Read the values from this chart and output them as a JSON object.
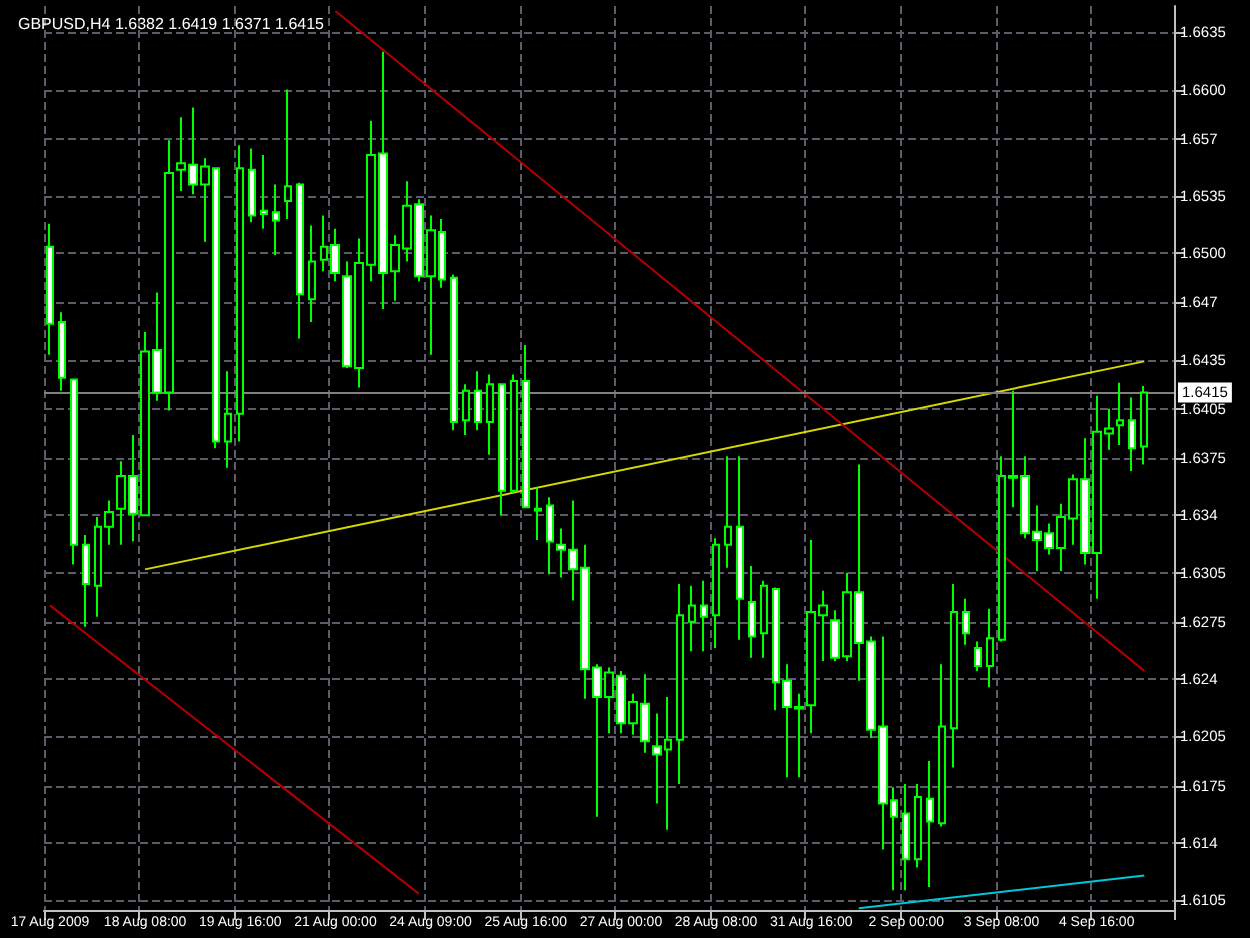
{
  "chart_data": {
    "type": "candlestick",
    "title": "GBPUSD,H4 1.6382 1.6419 1.6371 1.6415",
    "color": "#00ff00",
    "grid": true,
    "categories": [
      "17 Aug 2009",
      null,
      null,
      null,
      null,
      null,
      null,
      null,
      "18 Aug 08:00",
      null,
      null,
      null,
      null,
      null,
      null,
      null,
      "19 Aug 16:00",
      null,
      null,
      null,
      null,
      null,
      null,
      null,
      "21 Aug 00:00",
      null,
      null,
      null,
      null,
      null,
      null,
      null,
      "24 Aug 09:00",
      null,
      null,
      null,
      null,
      null,
      null,
      null,
      "25 Aug 16:00",
      null,
      null,
      null,
      null,
      null,
      null,
      null,
      "27 Aug 00:00",
      null,
      null,
      null,
      null,
      null,
      null,
      null,
      "28 Aug 08:00",
      null,
      null,
      null,
      null,
      null,
      null,
      null,
      "31 Aug 16:00",
      null,
      null,
      null,
      null,
      null,
      null,
      null,
      "2 Sep 00:00",
      null,
      null,
      null,
      null,
      null,
      null,
      null,
      "3 Sep 08:00",
      null,
      null,
      null,
      null,
      null,
      null,
      null,
      "4 Sep 16:00",
      null,
      null,
      null,
      null
    ],
    "ohlc": [
      [
        1.6504,
        1.6518,
        1.6438,
        1.6457
      ],
      [
        1.6458,
        1.6464,
        1.6416,
        1.6424
      ],
      [
        1.6423,
        1.6423,
        1.631,
        1.6322
      ],
      [
        1.6322,
        1.6328,
        1.6272,
        1.6298
      ],
      [
        1.6297,
        1.6339,
        1.6278,
        1.6333
      ],
      [
        1.6333,
        1.6349,
        1.6322,
        1.6342
      ],
      [
        1.6344,
        1.6373,
        1.6322,
        1.6364
      ],
      [
        1.6364,
        1.6389,
        1.6324,
        1.6341
      ],
      [
        1.634,
        1.6452,
        1.634,
        1.644
      ],
      [
        1.6441,
        1.6476,
        1.641,
        1.6415
      ],
      [
        1.6415,
        1.6569,
        1.6404,
        1.6549
      ],
      [
        1.6551,
        1.6583,
        1.6538,
        1.6555
      ],
      [
        1.6554,
        1.6589,
        1.6536,
        1.6542
      ],
      [
        1.6542,
        1.6558,
        1.6507,
        1.6553
      ],
      [
        1.6552,
        1.6552,
        1.6381,
        1.6385
      ],
      [
        1.6385,
        1.6428,
        1.6369,
        1.6402
      ],
      [
        1.6402,
        1.6566,
        1.6385,
        1.6552
      ],
      [
        1.6551,
        1.6564,
        1.6519,
        1.6523
      ],
      [
        1.6526,
        1.656,
        1.6515,
        1.6524
      ],
      [
        1.6525,
        1.6542,
        1.6499,
        1.652
      ],
      [
        1.6532,
        1.66,
        1.6521,
        1.6541
      ],
      [
        1.6542,
        1.6543,
        1.6448,
        1.6475
      ],
      [
        1.6472,
        1.6517,
        1.6458,
        1.6495
      ],
      [
        1.6496,
        1.6523,
        1.6489,
        1.6504
      ],
      [
        1.6505,
        1.6515,
        1.6483,
        1.6488
      ],
      [
        1.6486,
        1.6495,
        1.643,
        1.6431
      ],
      [
        1.643,
        1.6509,
        1.6418,
        1.6494
      ],
      [
        1.6493,
        1.6581,
        1.6483,
        1.656
      ],
      [
        1.6561,
        1.6623,
        1.6466,
        1.6488
      ],
      [
        1.6489,
        1.6511,
        1.6471,
        1.6505
      ],
      [
        1.6503,
        1.6544,
        1.6495,
        1.6529
      ],
      [
        1.653,
        1.6533,
        1.6483,
        1.6486
      ],
      [
        1.6486,
        1.6523,
        1.6438,
        1.6514
      ],
      [
        1.6513,
        1.6521,
        1.6479,
        1.6484
      ],
      [
        1.6485,
        1.6487,
        1.6392,
        1.6397
      ],
      [
        1.6398,
        1.642,
        1.6389,
        1.6416
      ],
      [
        1.6416,
        1.6428,
        1.6392,
        1.6397
      ],
      [
        1.6397,
        1.6426,
        1.6377,
        1.642
      ],
      [
        1.642,
        1.642,
        1.634,
        1.6355
      ],
      [
        1.6355,
        1.6426,
        1.6353,
        1.6422
      ],
      [
        1.6422,
        1.6444,
        1.6345,
        1.6345
      ],
      [
        1.6344,
        1.6357,
        1.6325,
        1.6343
      ],
      [
        1.6346,
        1.6351,
        1.6304,
        1.6324
      ],
      [
        1.6322,
        1.6332,
        1.6302,
        1.6319
      ],
      [
        1.6319,
        1.6349,
        1.6288,
        1.6307
      ],
      [
        1.6308,
        1.6322,
        1.6228,
        1.6246
      ],
      [
        1.6247,
        1.6249,
        1.6156,
        1.6229
      ],
      [
        1.6229,
        1.6247,
        1.6207,
        1.6244
      ],
      [
        1.6242,
        1.6245,
        1.6207,
        1.6213
      ],
      [
        1.6213,
        1.6231,
        1.6206,
        1.6226
      ],
      [
        1.6225,
        1.6243,
        1.6195,
        1.6202
      ],
      [
        1.6199,
        1.6219,
        1.6164,
        1.6194
      ],
      [
        1.6197,
        1.6229,
        1.6148,
        1.6203
      ],
      [
        1.6203,
        1.6298,
        1.6176,
        1.6279
      ],
      [
        1.6275,
        1.6297,
        1.6257,
        1.6285
      ],
      [
        1.6285,
        1.63,
        1.6257,
        1.6278
      ],
      [
        1.6279,
        1.6326,
        1.6259,
        1.6322
      ],
      [
        1.6322,
        1.6376,
        1.6308,
        1.6333
      ],
      [
        1.6333,
        1.6376,
        1.6264,
        1.6289
      ],
      [
        1.6287,
        1.6309,
        1.6253,
        1.6266
      ],
      [
        1.6268,
        1.63,
        1.6253,
        1.6297
      ],
      [
        1.6295,
        1.6296,
        1.6221,
        1.6238
      ],
      [
        1.6239,
        1.6249,
        1.618,
        1.6223
      ],
      [
        1.6223,
        1.6231,
        1.618,
        1.6222
      ],
      [
        1.6224,
        1.6325,
        1.6207,
        1.6281
      ],
      [
        1.6279,
        1.6294,
        1.6251,
        1.6285
      ],
      [
        1.6276,
        1.6282,
        1.6251,
        1.6253
      ],
      [
        1.6254,
        1.6305,
        1.6251,
        1.6293
      ],
      [
        1.6293,
        1.6371,
        1.6239,
        1.6262
      ],
      [
        1.6263,
        1.6266,
        1.6204,
        1.6209
      ],
      [
        1.6211,
        1.6266,
        1.6136,
        1.6164
      ],
      [
        1.6166,
        1.6174,
        1.6111,
        1.6156
      ],
      [
        1.6158,
        1.6176,
        1.6111,
        1.613
      ],
      [
        1.613,
        1.6176,
        1.6125,
        1.6168
      ],
      [
        1.6167,
        1.619,
        1.6113,
        1.6153
      ],
      [
        1.6152,
        1.6249,
        1.615,
        1.6211
      ],
      [
        1.621,
        1.6298,
        1.6186,
        1.6281
      ],
      [
        1.6281,
        1.6289,
        1.6261,
        1.6268
      ],
      [
        1.6259,
        1.6263,
        1.6245,
        1.6248
      ],
      [
        1.6248,
        1.6283,
        1.6235,
        1.6265
      ],
      [
        1.6264,
        1.6376,
        1.6263,
        1.6364
      ],
      [
        1.6364,
        1.6416,
        1.6345,
        1.6363
      ],
      [
        1.6364,
        1.6376,
        1.6326,
        1.6329
      ],
      [
        1.633,
        1.6346,
        1.6306,
        1.6325
      ],
      [
        1.6329,
        1.6335,
        1.6316,
        1.632
      ],
      [
        1.632,
        1.6347,
        1.6306,
        1.6339
      ],
      [
        1.6338,
        1.6365,
        1.6322,
        1.6362
      ],
      [
        1.6362,
        1.6387,
        1.631,
        1.6317
      ],
      [
        1.6317,
        1.6413,
        1.6289,
        1.6391
      ],
      [
        1.639,
        1.6405,
        1.638,
        1.6393
      ],
      [
        1.6395,
        1.6421,
        1.6383,
        1.6398
      ],
      [
        1.6398,
        1.6412,
        1.6367,
        1.6381
      ],
      [
        1.6382,
        1.6419,
        1.6371,
        1.6415
      ]
    ],
    "series": [
      {
        "type": "line",
        "color": "#d8d800",
        "values": [
          null,
          null,
          null,
          null,
          null,
          null,
          null,
          null,
          1.6307,
          null,
          null,
          null,
          null,
          null,
          null,
          null,
          null,
          null,
          null,
          null,
          null,
          null,
          null,
          null,
          null,
          null,
          null,
          null,
          null,
          null,
          null,
          null,
          null,
          null,
          null,
          null,
          null,
          null,
          null,
          null,
          null,
          null,
          null,
          null,
          null,
          null,
          null,
          null,
          null,
          null,
          null,
          null,
          null,
          null,
          null,
          null,
          null,
          null,
          null,
          null,
          null,
          null,
          null,
          null,
          null,
          null,
          null,
          null,
          null,
          null,
          null,
          null,
          null,
          null,
          null,
          null,
          null,
          null,
          null,
          null,
          null,
          null,
          null,
          null,
          null,
          null,
          null,
          null,
          null,
          null,
          null,
          null,
          1.6434
        ]
      },
      {
        "type": "line",
        "color": "#b00000",
        "values": [
          null,
          null,
          null,
          null,
          null,
          null,
          null,
          null,
          null,
          null,
          null,
          null,
          null,
          null,
          null,
          null,
          null,
          null,
          null,
          null,
          null,
          null,
          null,
          null,
          1.6648,
          null,
          null,
          null,
          null,
          null,
          null,
          null,
          null,
          null,
          null,
          null,
          null,
          null,
          null,
          null,
          null,
          null,
          null,
          null,
          null,
          null,
          null,
          null,
          null,
          null,
          null,
          null,
          null,
          null,
          null,
          null,
          null,
          null,
          null,
          null,
          null,
          null,
          null,
          null,
          null,
          null,
          null,
          null,
          null,
          null,
          null,
          null,
          null,
          null,
          null,
          null,
          null,
          null,
          null,
          null,
          null,
          null,
          null,
          null,
          null,
          null,
          null,
          null,
          null,
          null,
          null,
          null,
          1.6245
        ]
      },
      {
        "type": "line",
        "color": "#b00000",
        "values": [
          1.6285,
          null,
          null,
          null,
          null,
          null,
          null,
          null,
          null,
          null,
          null,
          null,
          null,
          null,
          null,
          null,
          null,
          null,
          null,
          null,
          null,
          null,
          null,
          null,
          null,
          null,
          null,
          null,
          null,
          null,
          null,
          1.6109,
          null,
          null,
          null,
          null,
          null,
          null,
          null,
          null,
          null,
          null,
          null,
          null,
          null,
          null,
          null,
          null,
          null,
          null,
          null,
          null,
          null,
          null,
          null,
          null,
          null,
          null,
          null,
          null,
          null,
          null,
          null,
          null,
          null,
          null,
          null,
          null,
          null,
          null,
          null,
          null,
          null,
          null,
          null,
          null,
          null,
          null,
          null,
          null,
          null,
          null,
          null,
          null,
          null,
          null,
          null,
          null,
          null,
          null,
          null,
          null,
          null
        ]
      },
      {
        "type": "line",
        "color": "#00c8d8",
        "values": [
          null,
          null,
          null,
          null,
          null,
          null,
          null,
          null,
          null,
          null,
          null,
          null,
          null,
          null,
          null,
          null,
          null,
          null,
          null,
          null,
          null,
          null,
          null,
          null,
          null,
          null,
          null,
          null,
          null,
          null,
          null,
          null,
          null,
          null,
          null,
          null,
          null,
          null,
          null,
          null,
          null,
          null,
          null,
          null,
          null,
          null,
          null,
          null,
          null,
          null,
          null,
          null,
          null,
          null,
          null,
          null,
          null,
          null,
          null,
          null,
          null,
          null,
          null,
          null,
          null,
          null,
          null,
          null,
          1.61,
          null,
          null,
          null,
          null,
          null,
          null,
          null,
          null,
          null,
          null,
          null,
          null,
          null,
          null,
          null,
          null,
          null,
          null,
          null,
          null,
          null,
          null,
          null,
          1.612
        ]
      }
    ],
    "ylim": [
      1.6099,
      1.6651
    ],
    "yticks": [
      1.6635,
      {
        "value": 1.66,
        "label": "1.6600"
      },
      1.657,
      1.6535,
      {
        "value": 1.65,
        "label": "1.6500"
      },
      1.647,
      1.6435,
      1.6405,
      1.6375,
      1.634,
      1.6305,
      1.6275,
      1.624,
      1.6205,
      1.6175,
      1.614,
      1.6105
    ],
    "ref_lines": [
      {
        "axis": "y",
        "value": 1.6415,
        "label": "1.6415",
        "color": "#808080"
      }
    ]
  }
}
